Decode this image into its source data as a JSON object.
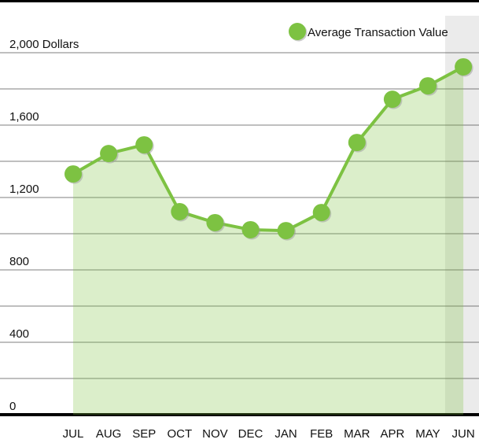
{
  "chart_data": {
    "type": "area-line",
    "categories": [
      "JUL",
      "AUG",
      "SEP",
      "OCT",
      "NOV",
      "DEC",
      "JAN",
      "FEB",
      "MAR",
      "APR",
      "MAY",
      "JUN"
    ],
    "series": [
      {
        "name": "Average Transaction Value",
        "color": "#7dc242",
        "values": [
          1330,
          1443,
          1491,
          1122,
          1061,
          1022,
          1017,
          1117,
          1504,
          1743,
          1817,
          1922
        ]
      }
    ],
    "ylim": [
      0,
      2000
    ],
    "yticks": [
      0,
      400,
      800,
      {
        "value": 1200,
        "label": "1,200"
      },
      {
        "value": 1600,
        "label": "1,600"
      },
      {
        "value": 2000,
        "label": "2,000 Dollars"
      }
    ],
    "yminorticks": [
      200,
      600,
      1000,
      1400,
      1800
    ],
    "grid": true,
    "legend": "top-right"
  }
}
